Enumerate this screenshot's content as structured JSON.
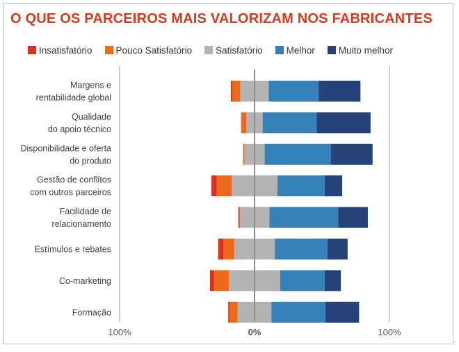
{
  "title": "O QUE OS PARCEIROS MAIS VALORIZAM NOS FABRICANTES",
  "chart_data": {
    "type": "bar",
    "orientation": "horizontal",
    "stacked": "diverging",
    "categories": [
      [
        "Margens e",
        "rentabilidade global"
      ],
      [
        "Qualidade",
        "do apoio técnico"
      ],
      [
        "Disponibilidade e oferta",
        "do produto"
      ],
      [
        "Gestão de conflitos",
        "com outros parceiros"
      ],
      [
        "Facilidade de",
        "relacionamento"
      ],
      [
        "Estímulos e rebates"
      ],
      [
        "Co-marketing"
      ],
      [
        "Formação"
      ]
    ],
    "series": [
      {
        "name": "Insatisfatório",
        "color": "#d9311c",
        "values": [
          1,
          0,
          0,
          4,
          1,
          4,
          3,
          1
        ]
      },
      {
        "name": "Pouco Satisfatório",
        "color": "#ed6a1c",
        "values": [
          6,
          4,
          1,
          11,
          0,
          8,
          11,
          6
        ]
      },
      {
        "name": "Satisfatório",
        "color": "#b3b3b3",
        "values": [
          21,
          12,
          15,
          34,
          22,
          30,
          38,
          25
        ]
      },
      {
        "name": "Melhor",
        "color": "#3681b9",
        "values": [
          37,
          40,
          49,
          35,
          51,
          39,
          33,
          40
        ]
      },
      {
        "name": "Muito melhor",
        "color": "#254279",
        "values": [
          31,
          40,
          31,
          13,
          22,
          15,
          12,
          25
        ]
      }
    ],
    "neutral_series": "Satisfatório",
    "xlim": [
      -100,
      100
    ],
    "xticks": [
      {
        "value": -100,
        "label": "100%"
      },
      {
        "value": 0,
        "label": "0%"
      },
      {
        "value": 100,
        "label": "100%"
      }
    ],
    "grid": true,
    "legend": "top"
  }
}
